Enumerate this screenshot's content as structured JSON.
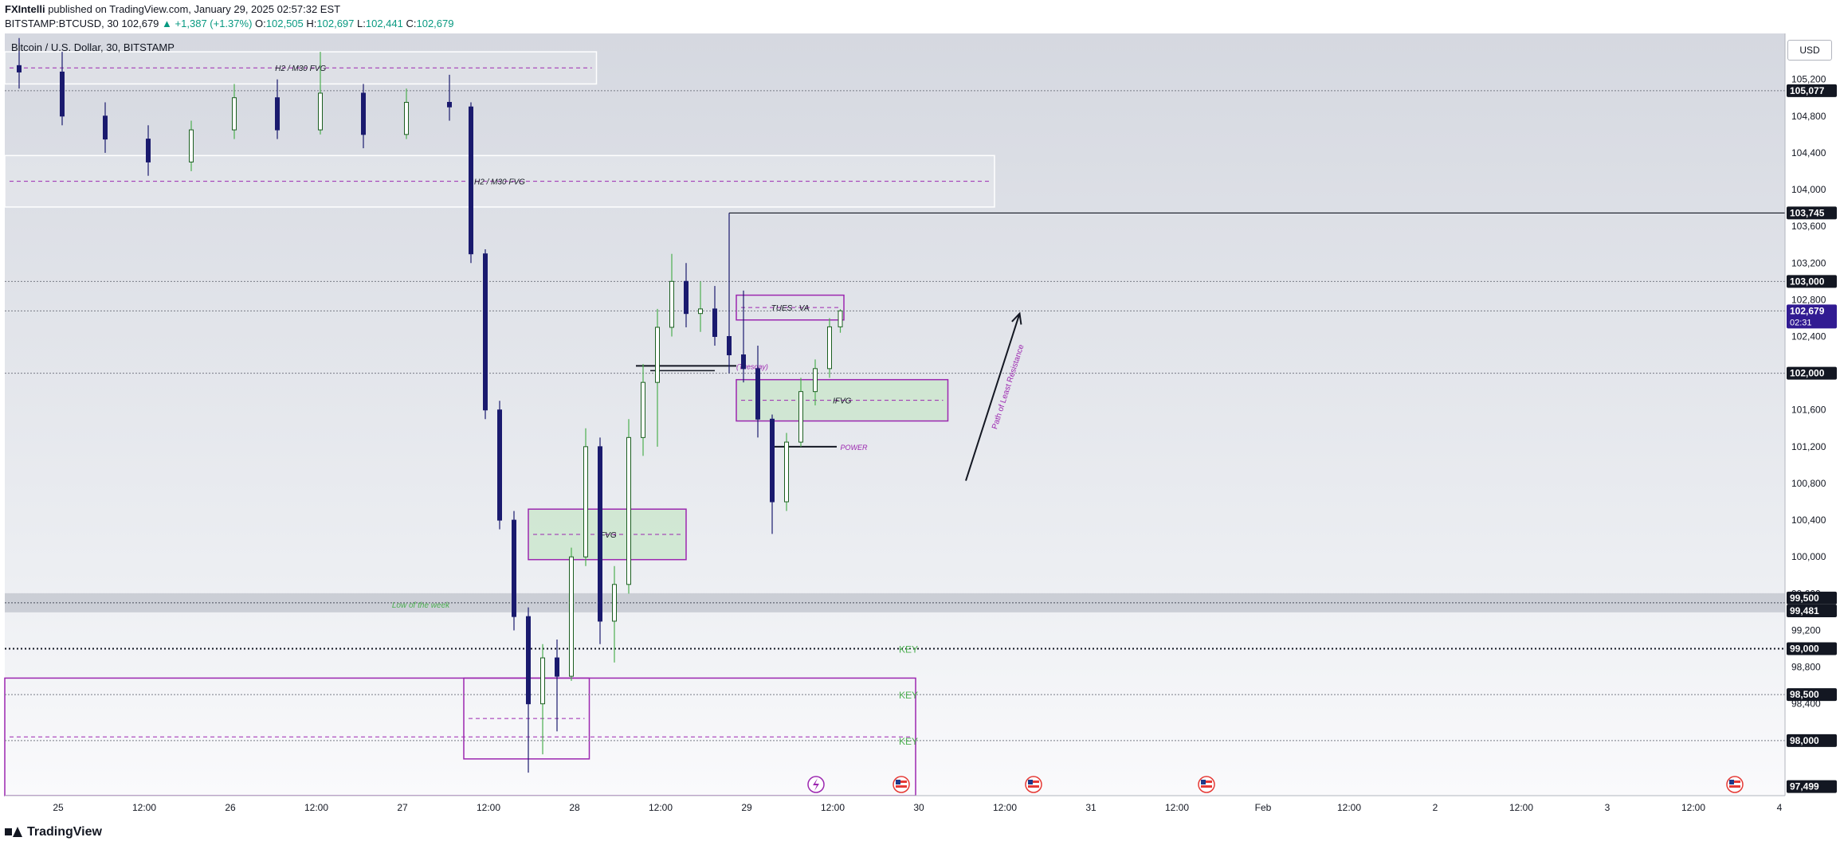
{
  "header": {
    "author": "FXIntelli",
    "published": "published on TradingView.com, January 29, 2025 02:57:32 EST",
    "symbol": "BITSTAMP:BTCUSD, 30",
    "last": "102,679",
    "change": "+1,387 (+1.37%)",
    "o_label": "O:",
    "o_value": "102,505",
    "h_label": "H:",
    "h_value": "102,697",
    "l_label": "L:",
    "l_value": "102,441",
    "c_label": "C:",
    "c_value": "102,679"
  },
  "footer": {
    "brand": "TradingView"
  },
  "chart_data": {
    "type": "candlestick",
    "title": "Bitcoin / U.S. Dollar, 30, BITSTAMP",
    "currency_button": "USD",
    "ylim": [
      97400,
      105700
    ],
    "y_ticks": [
      "105,200",
      "104,800",
      "104,400",
      "104,000",
      "103,600",
      "103,200",
      "102,800",
      "102,400",
      "101,600",
      "101,200",
      "100,800",
      "100,400",
      "100,000",
      "99,600",
      "99,200",
      "98,800",
      "98,400"
    ],
    "x_ticks": [
      "25",
      "12:00",
      "26",
      "12:00",
      "27",
      "12:00",
      "28",
      "12:00",
      "29",
      "12:00",
      "30",
      "12:00",
      "31",
      "12:00",
      "Feb",
      "12:00",
      "2",
      "12:00",
      "3",
      "12:00",
      "4"
    ],
    "price_labels": [
      {
        "value": 105077,
        "text": "105,077",
        "style": "dark"
      },
      {
        "value": 103745,
        "text": "103,745",
        "style": "dark"
      },
      {
        "value": 103000,
        "text": "103,000",
        "style": "dark"
      },
      {
        "value": 102679,
        "text": "102,679",
        "countdown": "02:31",
        "style": "current"
      },
      {
        "value": 102000,
        "text": "102,000",
        "style": "dark"
      },
      {
        "value": 99500,
        "text": "99,500",
        "style": "dark"
      },
      {
        "value": 99481,
        "text": "99,481",
        "style": "dark"
      },
      {
        "value": 99000,
        "text": "99,000",
        "style": "dark"
      },
      {
        "value": 98500,
        "text": "98,500",
        "style": "dark"
      },
      {
        "value": 98000,
        "text": "98,000",
        "style": "dark"
      },
      {
        "value": 97499,
        "text": "97,499",
        "style": "dark"
      }
    ],
    "zones": [
      {
        "label": "H2 / M30 FVG",
        "price_top": 105500,
        "price_bottom": 105150,
        "x_start": "2025-01-24T14:00",
        "x_end": "2025-01-28T00:30"
      },
      {
        "label": "H2 / M30 FVG",
        "price_top": 104370,
        "price_bottom": 103810,
        "x_start": "2025-01-24T14:00",
        "x_end": "2025-01-30T08:00"
      },
      {
        "label": "TUES : VA",
        "price_top": 102850,
        "price_bottom": 102580,
        "x_start": "2025-01-28T20:00",
        "x_end": "2025-01-29T11:00"
      },
      {
        "label": "IFVG",
        "price_top": 101930,
        "price_bottom": 101480,
        "x_start": "2025-01-28T20:00",
        "x_end": "2025-01-30T01:30"
      },
      {
        "label": "IFVG",
        "price_top": 100520,
        "price_bottom": 99970,
        "x_start": "2025-01-27T15:00",
        "x_end": "2025-01-28T13:00"
      },
      {
        "label": "",
        "price_top": 98680,
        "price_bottom": 97800,
        "x_start": "2025-01-27T06:00",
        "x_end": "2025-01-27T23:30"
      },
      {
        "label": "",
        "price_top": 98680,
        "price_bottom": 97400,
        "x_start": "2025-01-24T14:00",
        "x_end": "2025-01-29T21:00"
      }
    ],
    "levels": [
      {
        "price": 105077,
        "style": "dotted"
      },
      {
        "price": 103745,
        "style": "solid"
      },
      {
        "price": 103000,
        "style": "dotted"
      },
      {
        "price": 102679,
        "style": "dotted"
      },
      {
        "price": 102000,
        "style": "dotted"
      },
      {
        "price": 99500,
        "style": "band",
        "label": "Low of the week"
      },
      {
        "price": 99000,
        "style": "dotted-bold",
        "label": "KEY"
      },
      {
        "price": 98500,
        "style": "dotted",
        "label": "KEY"
      },
      {
        "price": 98000,
        "style": "dotted",
        "label": "KEY"
      }
    ],
    "annotations": [
      {
        "text": "(Tuesday)",
        "price": 102080
      },
      {
        "text": "POWER",
        "price": 101200
      },
      {
        "text": "Path of Least Resistance",
        "start": {
          "x": "2025-01-30T04:00",
          "price": 100830
        },
        "end": {
          "x": "2025-01-30T11:30",
          "price": 102650
        }
      }
    ],
    "candles": [
      {
        "t": "2025-01-24T16:00",
        "o": 105350,
        "h": 105650,
        "l": 105100,
        "c": 105280
      },
      {
        "t": "2025-01-24T22:00",
        "o": 105280,
        "h": 105500,
        "l": 104700,
        "c": 104800
      },
      {
        "t": "2025-01-25T04:00",
        "o": 104800,
        "h": 104950,
        "l": 104400,
        "c": 104550
      },
      {
        "t": "2025-01-25T10:00",
        "o": 104550,
        "h": 104700,
        "l": 104150,
        "c": 104300
      },
      {
        "t": "2025-01-25T16:00",
        "o": 104300,
        "h": 104750,
        "l": 104200,
        "c": 104650
      },
      {
        "t": "2025-01-25T22:00",
        "o": 104650,
        "h": 105150,
        "l": 104550,
        "c": 105000
      },
      {
        "t": "2025-01-26T04:00",
        "o": 105000,
        "h": 105200,
        "l": 104550,
        "c": 104650
      },
      {
        "t": "2025-01-26T10:00",
        "o": 104650,
        "h": 105500,
        "l": 104600,
        "c": 105050
      },
      {
        "t": "2025-01-26T16:00",
        "o": 105050,
        "h": 105150,
        "l": 104450,
        "c": 104600
      },
      {
        "t": "2025-01-26T22:00",
        "o": 104600,
        "h": 105100,
        "l": 104550,
        "c": 104950
      },
      {
        "t": "2025-01-27T04:00",
        "o": 104950,
        "h": 105250,
        "l": 104750,
        "c": 104900
      },
      {
        "t": "2025-01-27T07:00",
        "o": 104900,
        "h": 104950,
        "l": 103200,
        "c": 103300
      },
      {
        "t": "2025-01-27T09:00",
        "o": 103300,
        "h": 103350,
        "l": 101500,
        "c": 101600
      },
      {
        "t": "2025-01-27T11:00",
        "o": 101600,
        "h": 101700,
        "l": 100300,
        "c": 100400
      },
      {
        "t": "2025-01-27T13:00",
        "o": 100400,
        "h": 100500,
        "l": 99200,
        "c": 99350
      },
      {
        "t": "2025-01-27T15:00",
        "o": 99350,
        "h": 99450,
        "l": 97650,
        "c": 98400
      },
      {
        "t": "2025-01-27T17:00",
        "o": 98400,
        "h": 99050,
        "l": 97850,
        "c": 98900
      },
      {
        "t": "2025-01-27T19:00",
        "o": 98900,
        "h": 99100,
        "l": 98100,
        "c": 98700
      },
      {
        "t": "2025-01-27T21:00",
        "o": 98700,
        "h": 100100,
        "l": 98650,
        "c": 100000
      },
      {
        "t": "2025-01-27T23:00",
        "o": 100000,
        "h": 101400,
        "l": 99900,
        "c": 101200
      },
      {
        "t": "2025-01-28T01:00",
        "o": 101200,
        "h": 101300,
        "l": 99050,
        "c": 99300
      },
      {
        "t": "2025-01-28T03:00",
        "o": 99300,
        "h": 99900,
        "l": 98850,
        "c": 99700
      },
      {
        "t": "2025-01-28T05:00",
        "o": 99700,
        "h": 101500,
        "l": 99600,
        "c": 101300
      },
      {
        "t": "2025-01-28T07:00",
        "o": 101300,
        "h": 102100,
        "l": 101100,
        "c": 101900
      },
      {
        "t": "2025-01-28T09:00",
        "o": 101900,
        "h": 102700,
        "l": 101200,
        "c": 102500
      },
      {
        "t": "2025-01-28T11:00",
        "o": 102500,
        "h": 103300,
        "l": 102400,
        "c": 103000
      },
      {
        "t": "2025-01-28T13:00",
        "o": 103000,
        "h": 103200,
        "l": 102500,
        "c": 102650
      },
      {
        "t": "2025-01-28T15:00",
        "o": 102650,
        "h": 103000,
        "l": 102450,
        "c": 102700
      },
      {
        "t": "2025-01-28T17:00",
        "o": 102700,
        "h": 102950,
        "l": 102300,
        "c": 102400
      },
      {
        "t": "2025-01-28T19:00",
        "o": 102400,
        "h": 103745,
        "l": 102000,
        "c": 102200
      },
      {
        "t": "2025-01-28T21:00",
        "o": 102200,
        "h": 102900,
        "l": 101900,
        "c": 102050
      },
      {
        "t": "2025-01-28T23:00",
        "o": 102050,
        "h": 102300,
        "l": 101300,
        "c": 101500
      },
      {
        "t": "2025-01-29T01:00",
        "o": 101500,
        "h": 101550,
        "l": 100250,
        "c": 100600
      },
      {
        "t": "2025-01-29T03:00",
        "o": 100600,
        "h": 101350,
        "l": 100500,
        "c": 101250
      },
      {
        "t": "2025-01-29T05:00",
        "o": 101250,
        "h": 101950,
        "l": 101200,
        "c": 101800
      },
      {
        "t": "2025-01-29T07:00",
        "o": 101800,
        "h": 102150,
        "l": 101650,
        "c": 102050
      },
      {
        "t": "2025-01-29T09:00",
        "o": 102050,
        "h": 102600,
        "l": 101950,
        "c": 102505
      },
      {
        "t": "2025-01-29T10:30",
        "o": 102505,
        "h": 102697,
        "l": 102441,
        "c": 102679
      }
    ]
  }
}
